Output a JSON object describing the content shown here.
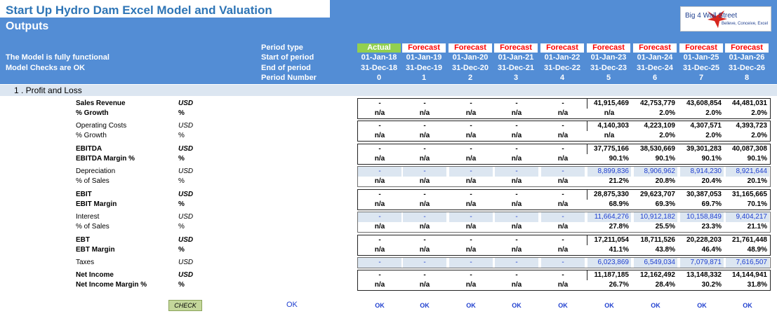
{
  "header": {
    "title": "Start Up Hydro Dam Excel Model and Valuation",
    "subtitle": "Outputs",
    "status_line1": "The Model is fully functional",
    "status_line2": "Model Checks are OK",
    "logo_text": "Big 4 Wall Street",
    "logo_tagline": "Believe, Conceive, Excel",
    "row_labels": [
      "Period type",
      "Start of period",
      "End of period",
      "Period Number"
    ]
  },
  "periods": [
    {
      "type": "Actual",
      "start": "01-Jan-18",
      "end": "31-Dec-18",
      "number": "0"
    },
    {
      "type": "Forecast",
      "start": "01-Jan-19",
      "end": "31-Dec-19",
      "number": "1"
    },
    {
      "type": "Forecast",
      "start": "01-Jan-20",
      "end": "31-Dec-20",
      "number": "2"
    },
    {
      "type": "Forecast",
      "start": "01-Jan-21",
      "end": "31-Dec-21",
      "number": "3"
    },
    {
      "type": "Forecast",
      "start": "01-Jan-22",
      "end": "31-Dec-22",
      "number": "4"
    },
    {
      "type": "Forecast",
      "start": "01-Jan-23",
      "end": "31-Dec-23",
      "number": "5"
    },
    {
      "type": "Forecast",
      "start": "01-Jan-24",
      "end": "31-Dec-24",
      "number": "6"
    },
    {
      "type": "Forecast",
      "start": "01-Jan-25",
      "end": "31-Dec-25",
      "number": "7"
    },
    {
      "type": "Forecast",
      "start": "01-Jan-26",
      "end": "31-Dec-26",
      "number": "8"
    }
  ],
  "section_title": "1 . Profit and Loss",
  "pairs": [
    {
      "main": {
        "label": "Sales Revenue",
        "unit": "USD",
        "values": [
          "-",
          "-",
          "-",
          "-",
          "-",
          "41,915,469",
          "42,753,779",
          "43,608,854",
          "44,481,031"
        ]
      },
      "sub": {
        "label": "% Growth",
        "unit": "%",
        "values": [
          "n/a",
          "n/a",
          "n/a",
          "n/a",
          "n/a",
          "n/a",
          "2.0%",
          "2.0%",
          "2.0%"
        ]
      },
      "bold": true,
      "input": false
    },
    {
      "main": {
        "label": "Operating Costs",
        "unit": "USD",
        "values": [
          "-",
          "-",
          "-",
          "-",
          "-",
          "4,140,303",
          "4,223,109",
          "4,307,571",
          "4,393,723"
        ]
      },
      "sub": {
        "label": "% Growth",
        "unit": "%",
        "values": [
          "n/a",
          "n/a",
          "n/a",
          "n/a",
          "n/a",
          "n/a",
          "2.0%",
          "2.0%",
          "2.0%"
        ]
      },
      "bold": false,
      "input": false
    },
    {
      "main": {
        "label": "EBITDA",
        "unit": "USD",
        "values": [
          "-",
          "-",
          "-",
          "-",
          "-",
          "37,775,166",
          "38,530,669",
          "39,301,283",
          "40,087,308"
        ]
      },
      "sub": {
        "label": "EBITDA Margin %",
        "unit": "%",
        "values": [
          "n/a",
          "n/a",
          "n/a",
          "n/a",
          "n/a",
          "90.1%",
          "90.1%",
          "90.1%",
          "90.1%"
        ]
      },
      "bold": true,
      "input": false
    },
    {
      "main": {
        "label": "Depreciation",
        "unit": "USD",
        "values": [
          "-",
          "-",
          "-",
          "-",
          "-",
          "8,899,836",
          "8,906,962",
          "8,914,230",
          "8,921,644"
        ]
      },
      "sub": {
        "label": "% of Sales",
        "unit": "%",
        "values": [
          "n/a",
          "n/a",
          "n/a",
          "n/a",
          "n/a",
          "21.2%",
          "20.8%",
          "20.4%",
          "20.1%"
        ]
      },
      "bold": false,
      "input": true
    },
    {
      "main": {
        "label": "EBIT",
        "unit": "USD",
        "values": [
          "-",
          "-",
          "-",
          "-",
          "-",
          "28,875,330",
          "29,623,707",
          "30,387,053",
          "31,165,665"
        ]
      },
      "sub": {
        "label": "EBIT Margin",
        "unit": "%",
        "values": [
          "n/a",
          "n/a",
          "n/a",
          "n/a",
          "n/a",
          "68.9%",
          "69.3%",
          "69.7%",
          "70.1%"
        ]
      },
      "bold": true,
      "input": false
    },
    {
      "main": {
        "label": "Interest",
        "unit": "USD",
        "values": [
          "-",
          "-",
          "-",
          "-",
          "-",
          "11,664,276",
          "10,912,182",
          "10,158,849",
          "9,404,217"
        ]
      },
      "sub": {
        "label": "% of Sales",
        "unit": "%",
        "values": [
          "n/a",
          "n/a",
          "n/a",
          "n/a",
          "n/a",
          "27.8%",
          "25.5%",
          "23.3%",
          "21.1%"
        ]
      },
      "bold": false,
      "input": true
    },
    {
      "main": {
        "label": "EBT",
        "unit": "USD",
        "values": [
          "-",
          "-",
          "-",
          "-",
          "-",
          "17,211,054",
          "18,711,526",
          "20,228,203",
          "21,761,448"
        ]
      },
      "sub": {
        "label": "EBT Margin",
        "unit": "%",
        "values": [
          "n/a",
          "n/a",
          "n/a",
          "n/a",
          "n/a",
          "41.1%",
          "43.8%",
          "46.4%",
          "48.9%"
        ]
      },
      "bold": true,
      "input": false
    }
  ],
  "taxes": {
    "label": "Taxes",
    "unit": "USD",
    "values": [
      "-",
      "-",
      "-",
      "-",
      "-",
      "6,023,869",
      "6,549,034",
      "7,079,871",
      "7,616,507"
    ]
  },
  "net_income": {
    "main": {
      "label": "Net Income",
      "unit": "USD",
      "values": [
        "-",
        "-",
        "-",
        "-",
        "-",
        "11,187,185",
        "12,162,492",
        "13,148,332",
        "14,144,941"
      ]
    },
    "sub": {
      "label": "Net Income Margin %",
      "unit": "%",
      "values": [
        "n/a",
        "n/a",
        "n/a",
        "n/a",
        "n/a",
        "26.7%",
        "28.4%",
        "30.2%",
        "31.8%"
      ]
    }
  },
  "check": {
    "label": "CHECK",
    "overall": "OK",
    "per_period": [
      "OK",
      "OK",
      "OK",
      "OK",
      "OK",
      "OK",
      "OK",
      "OK",
      "OK"
    ]
  },
  "colors": {
    "banner": "#538dd5",
    "actual": "#92d050",
    "forecast_text": "#ff0000",
    "input_text": "#1f3fcf",
    "shade": "#dce6f1"
  }
}
